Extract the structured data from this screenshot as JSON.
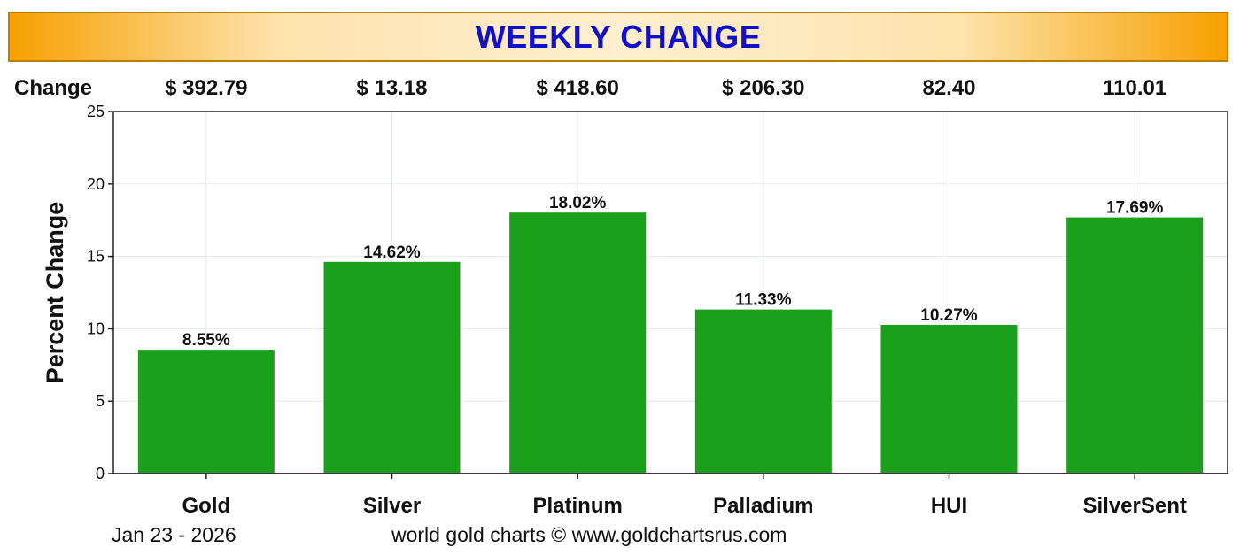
{
  "title": "WEEKLY CHANGE",
  "change_row": {
    "label": "Change",
    "values": [
      "$ 392.79",
      "$ 13.18",
      "$ 418.60",
      "$ 206.30",
      "82.40",
      "110.01"
    ]
  },
  "chart_data": {
    "type": "bar",
    "title": "WEEKLY CHANGE",
    "categories": [
      "Gold",
      "Silver",
      "Platinum",
      "Palladium",
      "HUI",
      "SilverSent"
    ],
    "values": [
      8.55,
      14.62,
      18.02,
      11.33,
      10.27,
      17.69
    ],
    "data_labels": [
      "8.55%",
      "14.62%",
      "18.02%",
      "11.33%",
      "10.27%",
      "17.69%"
    ],
    "xlabel": "",
    "ylabel": "Percent Change",
    "ylim": [
      0,
      25
    ],
    "yticks": [
      0,
      5,
      10,
      15,
      20,
      25
    ],
    "grid": true,
    "bar_color": "#1aa01a",
    "zero_line_color": "#cc66cc"
  },
  "footer": {
    "date": "Jan 23 - 2026",
    "credit": "world gold charts © www.goldchartsrus.com"
  }
}
